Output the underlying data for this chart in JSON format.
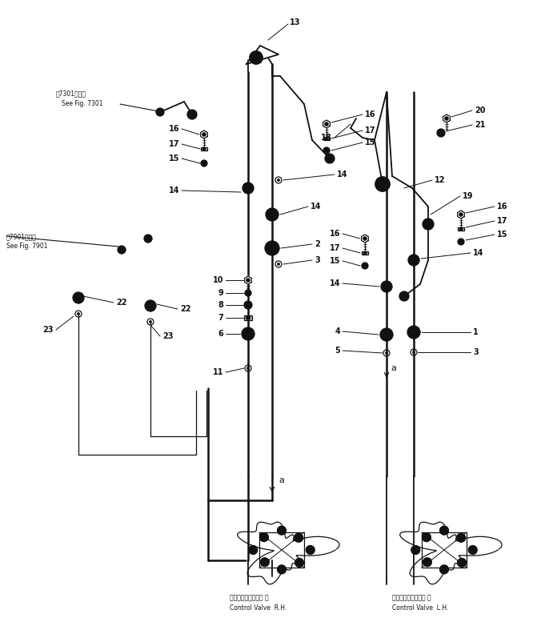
{
  "bg": "white",
  "lc": "#111111",
  "fig_w": 6.86,
  "fig_h": 8.02,
  "dpi": 100,
  "note1_line1": "第7301図参照",
  "note1_line2": "See Fig. 7301",
  "note2_line1": "第7901図参照",
  "note2_line2": "See Fig. 7901",
  "label_rh_j": "コントロールバルブ 右",
  "label_rh_e": "Control Valve  R.H.",
  "label_lh_j": "コントロールバルブ 左",
  "label_lh_e": "Control Valve  L.H."
}
